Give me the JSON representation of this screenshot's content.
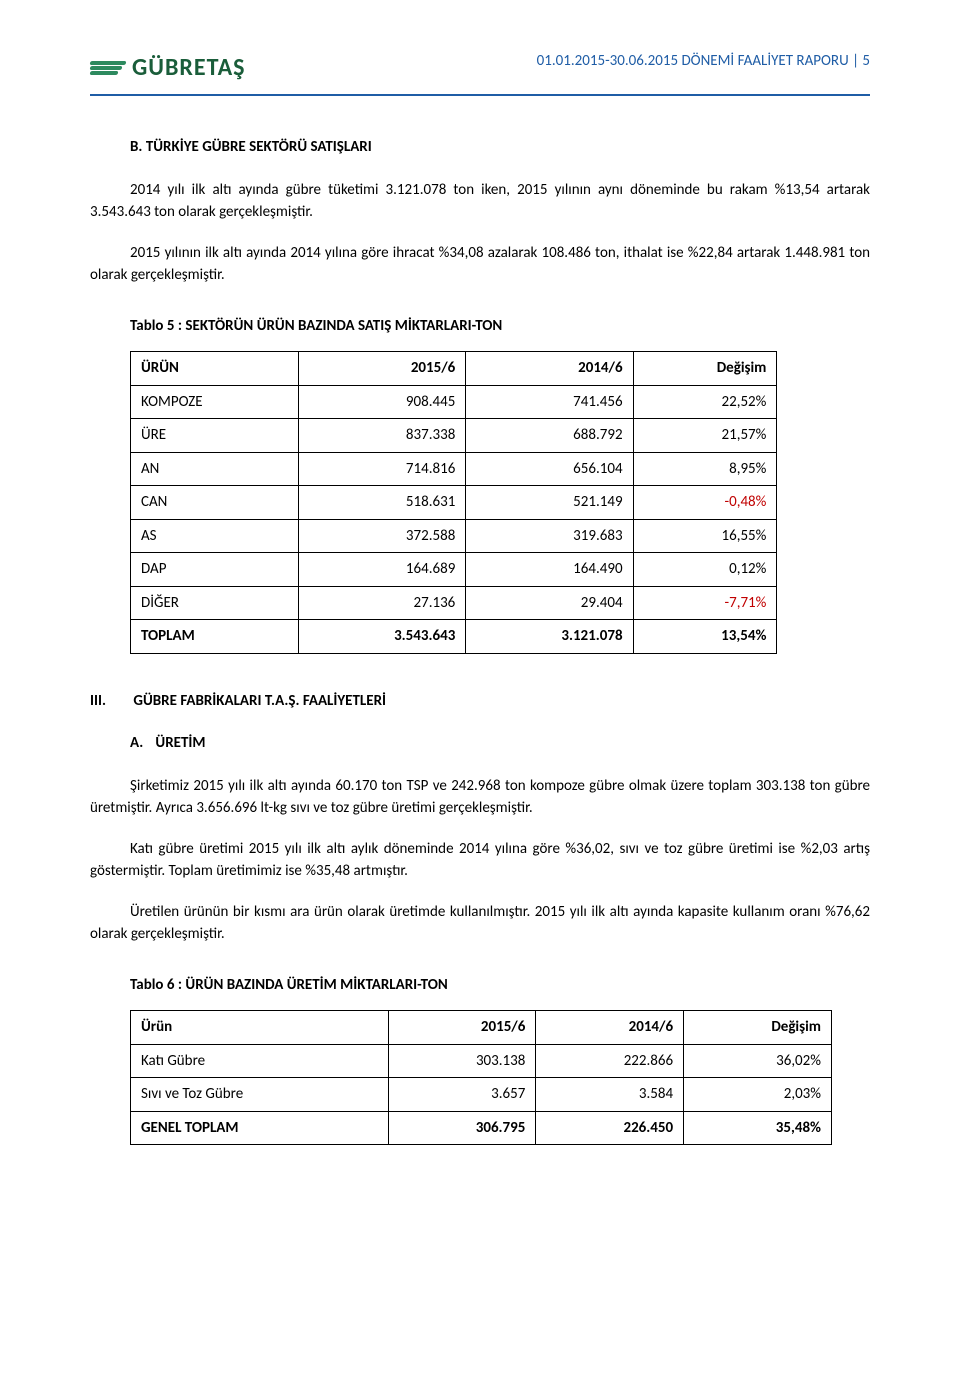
{
  "header": {
    "company": "GÜBRETAŞ",
    "report_line": "01.01.2015-30.06.2015 DÖNEMİ FAALİYET RAPORU | 5"
  },
  "sectionB": {
    "label": "B.",
    "title": "TÜRKİYE GÜBRE SEKTÖRÜ SATIŞLARI",
    "para1": "2014 yılı ilk altı ayında gübre tüketimi 3.121.078 ton iken, 2015 yılının aynı döneminde bu rakam %13,54 artarak 3.543.643 ton olarak gerçekleşmiştir.",
    "para2": "2015 yılının ilk altı ayında 2014 yılına göre ihracat %34,08 azalarak 108.486 ton, ithalat ise %22,84 artarak 1.448.981 ton olarak gerçekleşmiştir."
  },
  "table5": {
    "title": "Tablo 5 : SEKTÖRÜN ÜRÜN BAZINDA SATIŞ MİKTARLARI-TON",
    "headers": [
      "ÜRÜN",
      "2015/6",
      "2014/6",
      "Değişim"
    ],
    "rows": [
      {
        "label": "KOMPOZE",
        "c1": "908.445",
        "c2": "741.456",
        "c3": "22,52%",
        "neg": false
      },
      {
        "label": "ÜRE",
        "c1": "837.338",
        "c2": "688.792",
        "c3": "21,57%",
        "neg": false
      },
      {
        "label": "AN",
        "c1": "714.816",
        "c2": "656.104",
        "c3": "8,95%",
        "neg": false
      },
      {
        "label": "CAN",
        "c1": "518.631",
        "c2": "521.149",
        "c3": "-0,48%",
        "neg": true
      },
      {
        "label": "AS",
        "c1": "372.588",
        "c2": "319.683",
        "c3": "16,55%",
        "neg": false
      },
      {
        "label": "DAP",
        "c1": "164.689",
        "c2": "164.490",
        "c3": "0,12%",
        "neg": false
      },
      {
        "label": "DİĞER",
        "c1": "27.136",
        "c2": "29.404",
        "c3": "-7,71%",
        "neg": true
      },
      {
        "label": "TOPLAM",
        "c1": "3.543.643",
        "c2": "3.121.078",
        "c3": "13,54%",
        "neg": false,
        "total": true
      }
    ]
  },
  "sectionIII": {
    "roman": "III.",
    "title": "GÜBRE FABRİKALARI T.A.Ş. FAALİYETLERİ"
  },
  "sectionA": {
    "label": "A.",
    "title": "ÜRETİM",
    "para1": "Şirketimiz 2015 yılı ilk altı ayında 60.170 ton TSP ve 242.968 ton kompoze gübre olmak üzere toplam 303.138 ton gübre üretmiştir. Ayrıca 3.656.696 lt-kg sıvı ve toz gübre üretimi gerçekleşmiştir.",
    "para2": "Katı gübre üretimi 2015 yılı ilk altı aylık döneminde 2014 yılına göre %36,02, sıvı ve toz gübre üretimi ise %2,03 artış göstermiştir. Toplam üretimimiz ise %35,48 artmıştır.",
    "para3": "Üretilen ürünün bir kısmı ara ürün olarak üretimde kullanılmıştır. 2015 yılı ilk altı ayında kapasite kullanım oranı %76,62 olarak gerçekleşmiştir."
  },
  "table6": {
    "title": "Tablo 6 : ÜRÜN BAZINDA ÜRETİM MİKTARLARI-TON",
    "headers": [
      "Ürün",
      "2015/6",
      "2014/6",
      "Değişim"
    ],
    "rows": [
      {
        "label": "Katı Gübre",
        "c1": "303.138",
        "c2": "222.866",
        "c3": "36,02%"
      },
      {
        "label": "Sıvı ve Toz Gübre",
        "c1": "3.657",
        "c2": "3.584",
        "c3": "2,03%"
      },
      {
        "label": "GENEL TOPLAM",
        "c1": "306.795",
        "c2": "226.450",
        "c3": "35,48%",
        "total": true
      }
    ]
  },
  "colors": {
    "header_text": "#1f5da6",
    "logo_green": "#2d8a5f",
    "neg_color": "#c00000"
  }
}
